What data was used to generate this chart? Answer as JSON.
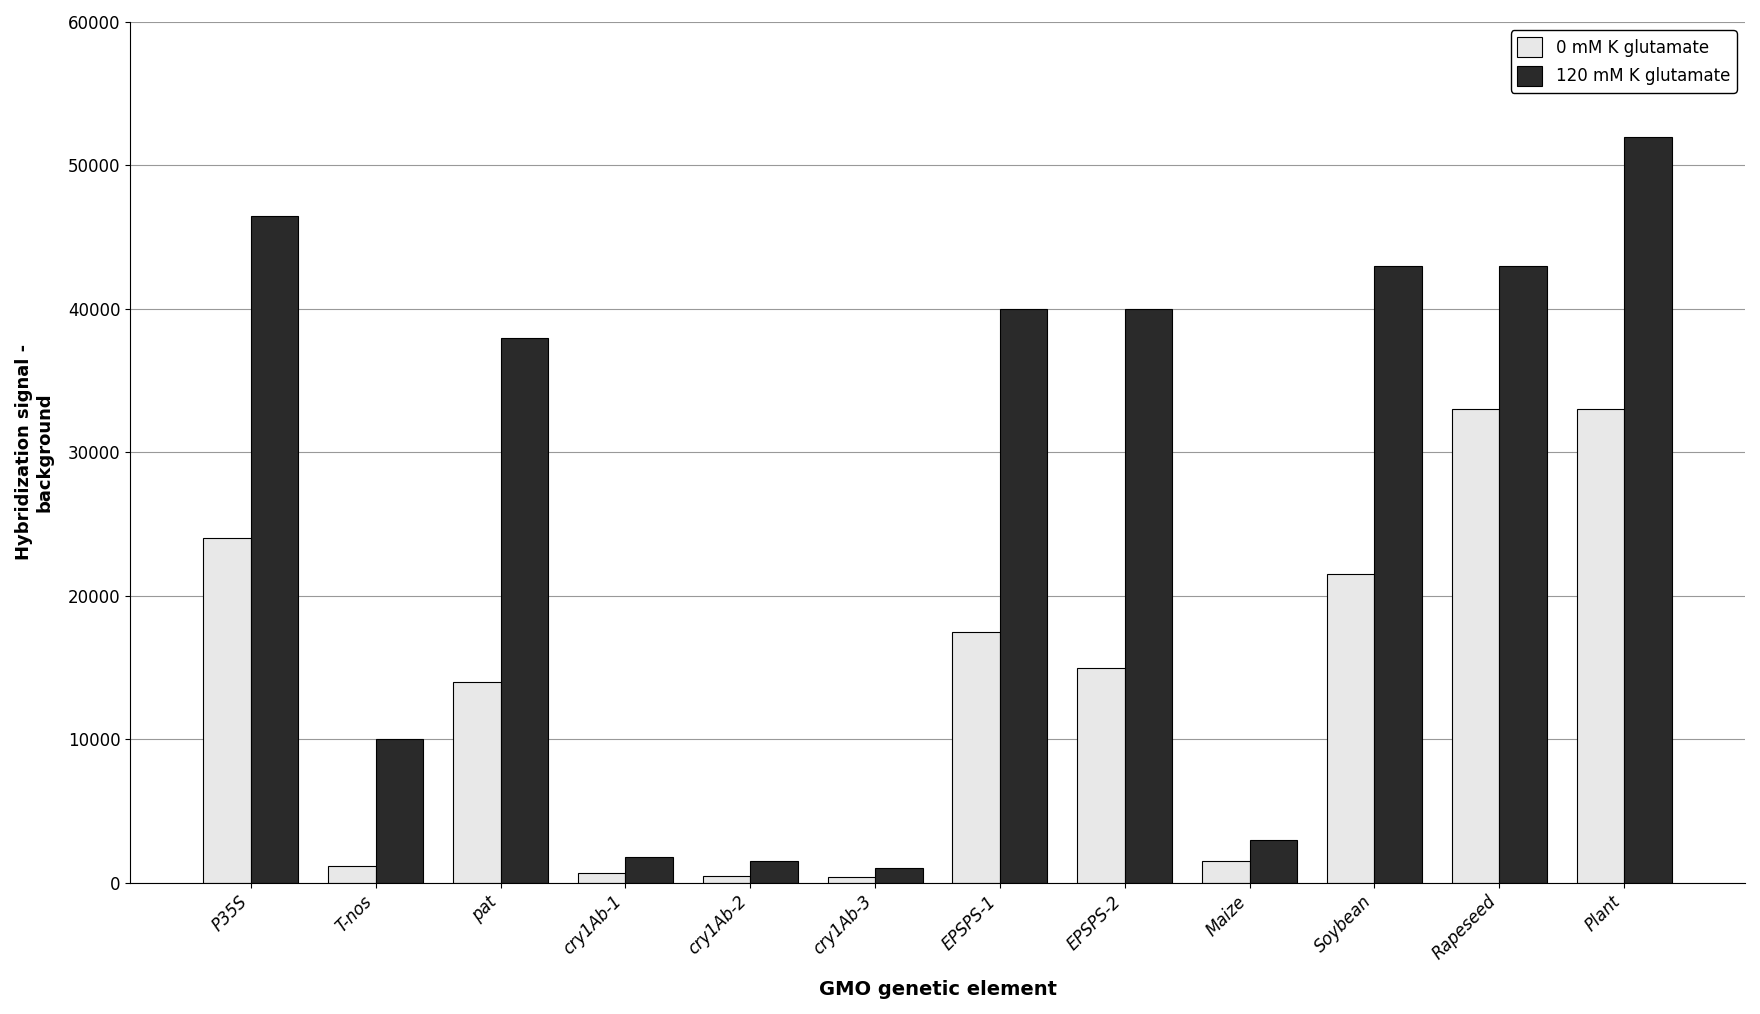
{
  "categories": [
    "P35S",
    "T-nos",
    "pat",
    "cry1Ab-1",
    "cry1Ab-2",
    "cry1Ab-3",
    "EPSPS-1",
    "EPSPS-2",
    "Maize",
    "Soybean",
    "Rapeseed",
    "Plant"
  ],
  "values_0mM": [
    24000,
    1200,
    14000,
    700,
    500,
    400,
    17500,
    15000,
    1500,
    21500,
    33000,
    33000
  ],
  "values_120mM": [
    46500,
    10000,
    38000,
    1800,
    1500,
    1000,
    40000,
    40000,
    3000,
    43000,
    43000,
    52000
  ],
  "color_0mM": "#e8e8e8",
  "color_120mM": "#2a2a2a",
  "legend_0mM": "0 mM K glutamate",
  "legend_120mM": "120 mM K glutamate",
  "ylabel": "Hybridization signal -\nbackground",
  "xlabel": "GMO genetic element",
  "ylim": [
    0,
    60000
  ],
  "yticks": [
    0,
    10000,
    20000,
    30000,
    40000,
    50000,
    60000
  ],
  "title": "",
  "bar_width": 0.38,
  "background_color": "#ffffff",
  "grid_color": "#999999"
}
